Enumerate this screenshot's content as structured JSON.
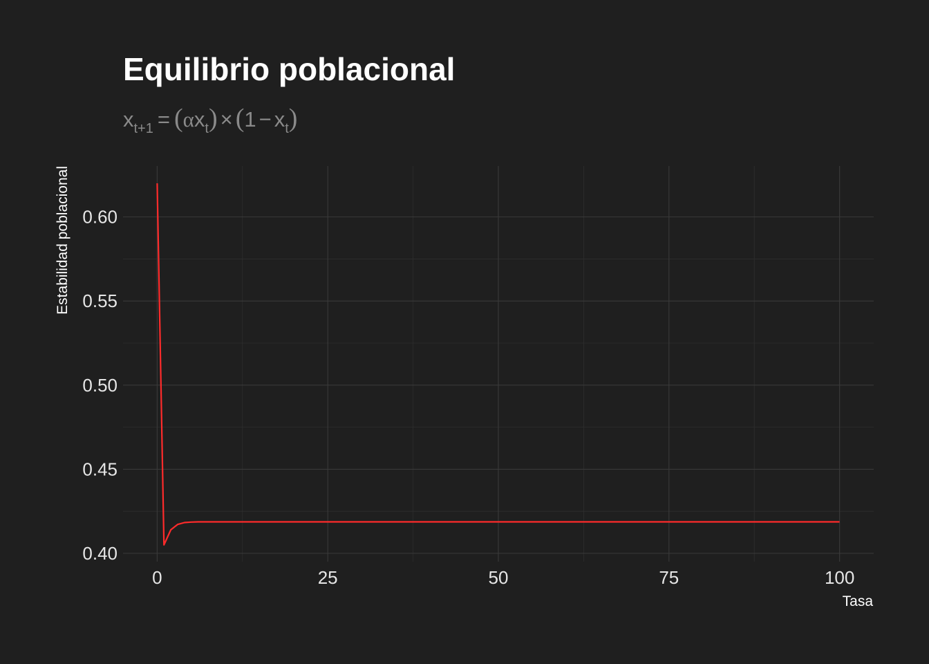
{
  "chart_data": {
    "type": "line",
    "title": "Equilibrio poblacional",
    "subtitle": {
      "var": "x",
      "sub_next": "t+1",
      "sub_t": "t",
      "alpha": "α",
      "times": "×",
      "minus": "−",
      "one": "1",
      "equals": "="
    },
    "xlabel": "Tasa",
    "ylabel": "Estabilidad poblacional",
    "xlim": [
      -5,
      105
    ],
    "ylim": [
      0.4,
      0.625
    ],
    "x_ticks": [
      0,
      25,
      50,
      75,
      100
    ],
    "x_tick_labels": [
      "0",
      "25",
      "50",
      "75",
      "100"
    ],
    "y_ticks": [
      0.4,
      0.45,
      0.5,
      0.55,
      0.6
    ],
    "y_tick_labels": [
      "0.40",
      "0.45",
      "0.50",
      "0.55",
      "0.60"
    ],
    "x_minor": [
      12.5,
      37.5,
      62.5,
      87.5
    ],
    "y_minor": [
      0.425,
      0.475,
      0.525,
      0.575
    ],
    "grid": true,
    "background": "#1f1f1f",
    "series": [
      {
        "color": "#ff2b2b",
        "x": [
          0,
          1,
          2,
          3,
          4,
          5,
          6,
          7,
          8,
          9,
          10,
          15,
          20,
          25,
          30,
          40,
          50,
          60,
          70,
          80,
          90,
          100
        ],
        "y": [
          0.62,
          0.405,
          0.414,
          0.4172,
          0.4183,
          0.4186,
          0.4187,
          0.4187,
          0.4187,
          0.4187,
          0.4187,
          0.4187,
          0.4187,
          0.4187,
          0.4187,
          0.4187,
          0.4187,
          0.4187,
          0.4187,
          0.4187,
          0.4187,
          0.4187
        ]
      }
    ]
  }
}
